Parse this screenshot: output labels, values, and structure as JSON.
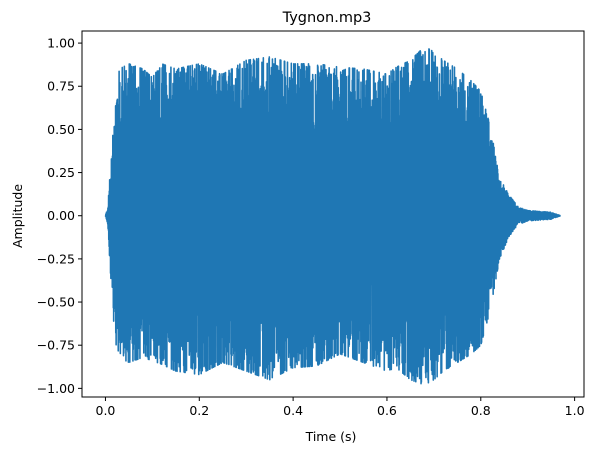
{
  "chart_data": {
    "type": "line",
    "title": "Tygnon.mp3",
    "xlabel": "Time (s)",
    "ylabel": "Amplitude",
    "xlim": [
      -0.05,
      1.02
    ],
    "ylim": [
      -1.05,
      1.07
    ],
    "xticks": [
      0.0,
      0.2,
      0.4,
      0.6,
      0.8,
      1.0
    ],
    "xtick_labels": [
      "0.0",
      "0.2",
      "0.4",
      "0.6",
      "0.8",
      "1.0"
    ],
    "yticks": [
      -1.0,
      -0.75,
      -0.5,
      -0.25,
      0.0,
      0.25,
      0.5,
      0.75,
      1.0
    ],
    "ytick_labels": [
      "−1.00",
      "−0.75",
      "−0.50",
      "−0.25",
      "0.00",
      "0.25",
      "0.50",
      "0.75",
      "1.00"
    ],
    "grid": false,
    "line_color": "#1f77b4",
    "series": [
      {
        "name": "",
        "envelope": {
          "t": [
            0.0,
            0.005,
            0.01,
            0.015,
            0.02,
            0.03,
            0.05,
            0.08,
            0.1,
            0.12,
            0.15,
            0.2,
            0.25,
            0.3,
            0.35,
            0.4,
            0.45,
            0.5,
            0.55,
            0.6,
            0.62,
            0.65,
            0.68,
            0.7,
            0.72,
            0.75,
            0.78,
            0.8,
            0.82,
            0.84,
            0.86,
            0.88,
            0.9,
            0.95,
            0.97
          ],
          "max": [
            0.0,
            0.05,
            0.25,
            0.45,
            0.7,
            0.85,
            0.88,
            0.85,
            0.8,
            0.88,
            0.85,
            0.88,
            0.82,
            0.9,
            0.92,
            0.88,
            0.88,
            0.86,
            0.85,
            0.82,
            0.86,
            0.9,
            0.98,
            0.95,
            0.9,
            0.85,
            0.78,
            0.72,
            0.52,
            0.22,
            0.12,
            0.05,
            0.03,
            0.02,
            0.0
          ],
          "min": [
            0.0,
            -0.05,
            -0.3,
            -0.5,
            -0.72,
            -0.82,
            -0.85,
            -0.82,
            -0.84,
            -0.86,
            -0.9,
            -0.92,
            -0.85,
            -0.9,
            -0.95,
            -0.88,
            -0.87,
            -0.8,
            -0.85,
            -0.9,
            -0.88,
            -0.95,
            -0.98,
            -0.95,
            -0.9,
            -0.85,
            -0.8,
            -0.75,
            -0.55,
            -0.25,
            -0.12,
            -0.05,
            -0.03,
            -0.02,
            0.0
          ]
        }
      }
    ]
  }
}
